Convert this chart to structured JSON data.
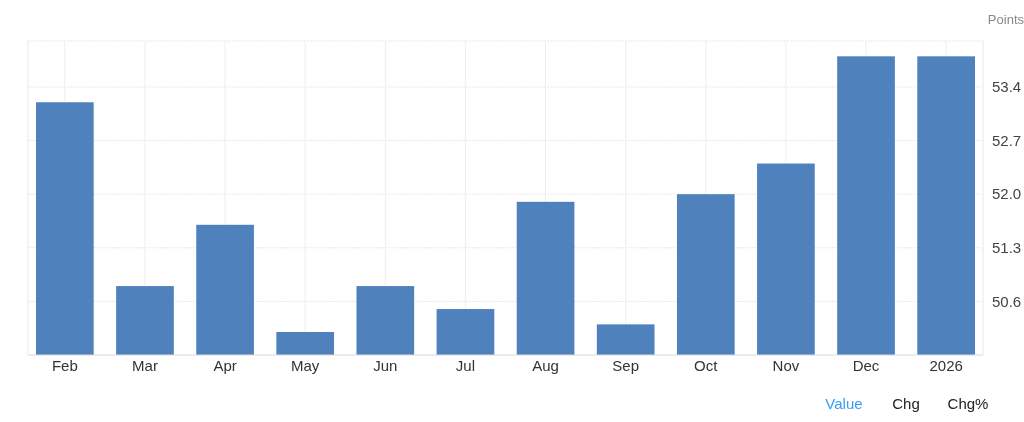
{
  "chart_data": {
    "type": "bar",
    "ylabel": "Points",
    "categories": [
      "Feb",
      "Mar",
      "Apr",
      "May",
      "Jun",
      "Jul",
      "Aug",
      "Sep",
      "Oct",
      "Nov",
      "Dec",
      "2026"
    ],
    "values": [
      53.2,
      50.8,
      51.6,
      50.2,
      50.8,
      50.5,
      51.9,
      50.3,
      52.0,
      52.4,
      53.8,
      53.8
    ],
    "color": "#4f81bd",
    "ylim": [
      49.9,
      54.0
    ],
    "yticks": [
      {
        "value": 50.6,
        "label": "50.6"
      },
      {
        "value": 51.3,
        "label": "51.3"
      },
      {
        "value": 52.0,
        "label": "52.0"
      },
      {
        "value": 52.7,
        "label": "52.7"
      },
      {
        "value": 53.4,
        "label": "53.4"
      }
    ],
    "grid": true,
    "annotations": [
      "Value",
      "Chg",
      "Chg%"
    ]
  }
}
